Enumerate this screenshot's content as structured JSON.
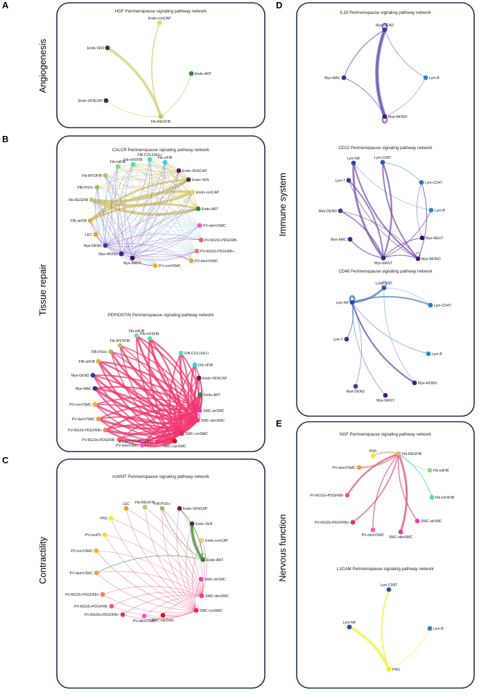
{
  "panels": {
    "A": {
      "letter": "A",
      "side_label": "Angiogenesis"
    },
    "B": {
      "letter": "B",
      "side_label": "Tissue repair"
    },
    "C": {
      "letter": "C",
      "side_label": "Contractility"
    },
    "D": {
      "letter": "D",
      "side_label": "Immune system"
    },
    "E": {
      "letter": "E",
      "side_label": "Nervous function"
    }
  },
  "colors": {
    "border": "#1d2b52",
    "hgf_edge": "#d6cf7a",
    "calcr_edge_fib": "#d9c25a",
    "calcr_edge_mye": "#7b5cc4",
    "periostin_edge": "#f0336d",
    "ncwnt_edge": "#f05a8c",
    "ncwnt_edge_green": "#3a8a2a",
    "il10_edge": "#6e55b8",
    "cd22_edge": "#7a52b0",
    "cd48_edge": "#4a7fc4",
    "ngf_edge": "#e34b7c",
    "l1cam_edge": "#f2ee3c"
  },
  "networks": [
    {
      "id": "hgf",
      "title": "HGF Perimenopause signaling pathway network",
      "nodes": [
        {
          "label": "Endo-conCAP",
          "color": "#dcd87a"
        },
        {
          "label": "Endo-VEN",
          "color": "#3a3a3a"
        },
        {
          "label": "Endo-ART",
          "color": "#2e8b2e"
        },
        {
          "label": "Endo-VENCAP",
          "color": "#5a1a5a"
        },
        {
          "label": "Fib-REGFIB",
          "color": "#c9c46a"
        }
      ]
    },
    {
      "id": "calcr",
      "title": "CALCR Perimenopause signaling pathway network",
      "nodes": [
        {
          "label": "FIB-COL15A1+",
          "color": "#3fe0d0"
        },
        {
          "label": "Fib-InFIIFIB",
          "color": "#4be3a0"
        },
        {
          "label": "Fib-cIFIB",
          "color": "#29d6e6"
        },
        {
          "label": "Fib-intFIB",
          "color": "#7fd98a"
        },
        {
          "label": "Endo-VENCAP",
          "color": "#5a1a5a"
        },
        {
          "label": "Fib-MYOFIB",
          "color": "#a8c96a"
        },
        {
          "label": "Endo-VEN",
          "color": "#3a3a3a"
        },
        {
          "label": "FIB-PI16+",
          "color": "#9bbf5a"
        },
        {
          "label": "Endo-conCAP",
          "color": "#dcd87a"
        },
        {
          "label": "Fib-REGFIB",
          "color": "#c9c46a"
        },
        {
          "label": "Endo-ART",
          "color": "#2e8b2e"
        },
        {
          "label": "FIB-strFIB",
          "color": "#d8b13a"
        },
        {
          "label": "PV-stimVSMC",
          "color": "#f35ac6"
        },
        {
          "label": "LEC",
          "color": "#f0a020"
        },
        {
          "label": "PV-RGS5-PDGFRB-",
          "color": "#f5597a"
        },
        {
          "label": "Mye-DEND",
          "color": "#3a3aa0"
        },
        {
          "label": "PV-RGS5-PDGFRB+",
          "color": "#f08060"
        },
        {
          "label": "Mye-MONO",
          "color": "#4a1a80"
        },
        {
          "label": "PV-damVSMC",
          "color": "#f2a040"
        },
        {
          "label": "Mye-NEUT",
          "color": "#3a0a6a"
        },
        {
          "label": "PV-conVSMC",
          "color": "#f5b020"
        }
      ]
    },
    {
      "id": "periostin",
      "title": "PERIOSTIN Perimenopause signaling pathway network",
      "nodes": [
        {
          "label": "Fib-MYOFIB",
          "color": "#a8c96a"
        },
        {
          "label": "Fib-intFIB",
          "color": "#7fd98a"
        },
        {
          "label": "Fib-InFIIFIB",
          "color": "#4be3a0"
        },
        {
          "label": "FIB-PI16+",
          "color": "#9bbf5a"
        },
        {
          "label": "FIB-COL15A1+",
          "color": "#3fe0d0"
        },
        {
          "label": "FIB-strFIB",
          "color": "#d8b13a"
        },
        {
          "label": "Fib-cIFIB",
          "color": "#29d6e6"
        },
        {
          "label": "Mye-DEND",
          "color": "#3a3aa0"
        },
        {
          "label": "Endo-VENCAP",
          "color": "#5a1a5a"
        },
        {
          "label": "Mye-MAC",
          "color": "#33338a"
        },
        {
          "label": "Endo-ART",
          "color": "#2e8b2e"
        },
        {
          "label": "PV-conVSMC",
          "color": "#f5b020"
        },
        {
          "label": "SMC-strSMC",
          "color": "#f03ab0"
        },
        {
          "label": "PV-damVSMC",
          "color": "#f2a040"
        },
        {
          "label": "SMC-stimSMC",
          "color": "#f03a90"
        },
        {
          "label": "PV-RGS5-PDGFRB+",
          "color": "#f08060"
        },
        {
          "label": "SMC-conSMC",
          "color": "#f0206a"
        },
        {
          "label": "PV-RGS5+PDGFRB-",
          "color": "#f0607a"
        },
        {
          "label": "PV-RGS5+PDGFRB+",
          "color": "#e8306a"
        },
        {
          "label": "SMC-canSMC",
          "color": "#e01010"
        },
        {
          "label": "PV-stimVSMC",
          "color": "#f35ac6"
        }
      ]
    },
    {
      "id": "ncwnt",
      "title": "ncWNT Perimenopause signaling pathway network",
      "nodes": [
        {
          "label": "Fib-REGFIB",
          "color": "#c9c46a"
        },
        {
          "label": "FIB-PI16+",
          "color": "#9bbf5a"
        },
        {
          "label": "LEC",
          "color": "#f0a020"
        },
        {
          "label": "Endo-VENCAP",
          "color": "#5a1a5a"
        },
        {
          "label": "PNS",
          "color": "#f2ea20"
        },
        {
          "label": "Endo-VEN",
          "color": "#3a3a3a"
        },
        {
          "label": "PV-conPV",
          "color": "#f2e020"
        },
        {
          "label": "Endo-conCAP",
          "color": "#dcd87a"
        },
        {
          "label": "PV-conVSMC",
          "color": "#f5b020"
        },
        {
          "label": "Endo-ART",
          "color": "#2e8b2e"
        },
        {
          "label": "PV-damVSMC",
          "color": "#f2a040"
        },
        {
          "label": "SMC-strSMC",
          "color": "#f03ab0"
        },
        {
          "label": "PV-RGS5-PDGFRB+",
          "color": "#f08060"
        },
        {
          "label": "SMC-stimSMC",
          "color": "#f03a90"
        },
        {
          "label": "PV-RGS5+PDGFRB-",
          "color": "#f0607a"
        },
        {
          "label": "SMC-conSMC",
          "color": "#f0206a"
        },
        {
          "label": "PV-RGS5+PDGFRB+",
          "color": "#e8306a"
        },
        {
          "label": "SMC-canSMC",
          "color": "#e01010"
        },
        {
          "label": "PV-stimVSMC",
          "color": "#f35ac6"
        }
      ]
    },
    {
      "id": "il10",
      "title": "IL10 Perimenopause signaling pathway network",
      "nodes": [
        {
          "label": "Mye-DEND",
          "color": "#3a3aa0"
        },
        {
          "label": "Mye-MAC",
          "color": "#33338a"
        },
        {
          "label": "Lym-B",
          "color": "#2a8ad0"
        },
        {
          "label": "Mye-MONO",
          "color": "#4a1a80"
        }
      ]
    },
    {
      "id": "cd22",
      "title": "CD22 Perimenopause signaling pathway network",
      "nodes": [
        {
          "label": "Lym-NK",
          "color": "#2a4aa8"
        },
        {
          "label": "Lym-CD8T",
          "color": "#2a5aa8"
        },
        {
          "label": "Lym-T",
          "color": "#2a3a90"
        },
        {
          "label": "Lym-CD4T",
          "color": "#2a7ac0"
        },
        {
          "label": "Mye-DEND",
          "color": "#3a3aa0"
        },
        {
          "label": "Lym-B",
          "color": "#2a8ad0"
        },
        {
          "label": "Mye-NEUT",
          "color": "#3a0a6a"
        },
        {
          "label": "Mye-MAC",
          "color": "#33338a"
        },
        {
          "label": "Mye-MAST",
          "color": "#4a1a80"
        },
        {
          "label": "Mye-MONO",
          "color": "#4a1a80"
        }
      ]
    },
    {
      "id": "cd48",
      "title": "CD48 Perimenopause signaling pathway network",
      "nodes": [
        {
          "label": "Lym-CD8T",
          "color": "#2a5aa8"
        },
        {
          "label": "Lym-NK",
          "color": "#2a4aa8"
        },
        {
          "label": "Lym-CD4T",
          "color": "#2a7ac0"
        },
        {
          "label": "Lym-T",
          "color": "#2a3a90"
        },
        {
          "label": "Lym-B",
          "color": "#2a8ad0"
        },
        {
          "label": "Mye-MONO",
          "color": "#4a1a80"
        },
        {
          "label": "Mye-DEND",
          "color": "#3a3aa0"
        },
        {
          "label": "Mye-MAST",
          "color": "#4a1a80"
        }
      ]
    },
    {
      "id": "ngf",
      "title": "NGF Perimenopause signaling pathway network",
      "nodes": [
        {
          "label": "PNS",
          "color": "#f2ea20"
        },
        {
          "label": "Fib-REGFIB",
          "color": "#c9c46a"
        },
        {
          "label": "PV-damVSMC",
          "color": "#f2a040"
        },
        {
          "label": "Fib-intFIB",
          "color": "#7fd98a"
        },
        {
          "label": "PV-RGS5+PDGFRB-",
          "color": "#f0607a"
        },
        {
          "label": "Fib-InFIIFIB",
          "color": "#4be3a0"
        },
        {
          "label": "PV-RGS5+PDGFRB+",
          "color": "#e8306a"
        },
        {
          "label": "SMC-strSMC",
          "color": "#f03ab0"
        },
        {
          "label": "PV-stimVSMC",
          "color": "#f35ac6"
        },
        {
          "label": "SMC-stimSMC",
          "color": "#f03a90"
        }
      ]
    },
    {
      "id": "l1cam",
      "title": "L1CAM Perimenopause signaling pathway network",
      "nodes": [
        {
          "label": "Lym-CD8T",
          "color": "#2a5aa8"
        },
        {
          "label": "Lym-NK",
          "color": "#2a4aa8"
        },
        {
          "label": "Lym-B",
          "color": "#2a8ad0"
        },
        {
          "label": "PNS",
          "color": "#f2ea20"
        }
      ]
    }
  ]
}
